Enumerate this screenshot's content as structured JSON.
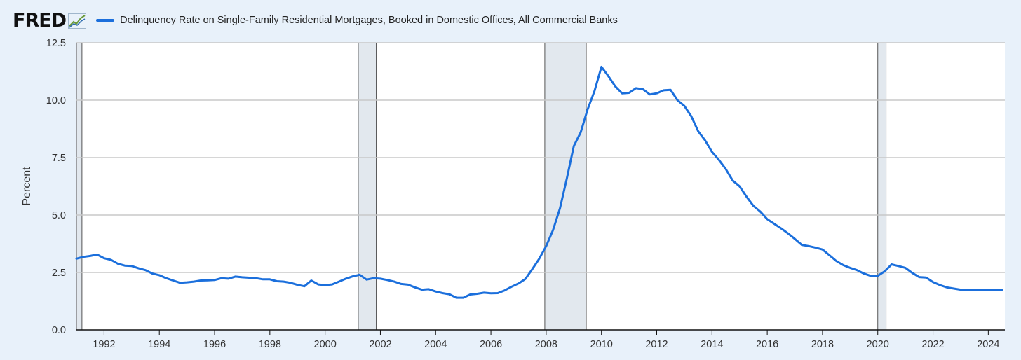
{
  "brand": {
    "logo_text": "FRED",
    "logo_icon": "line-chart-icon"
  },
  "colors": {
    "series": "#1b6fdc",
    "recession": "#e2e8ee",
    "grid": "#c8c8c8",
    "background": "#e8f1fa"
  },
  "chart_data": {
    "type": "line",
    "title": "",
    "xlabel": "",
    "ylabel": "Percent",
    "xlim": [
      1991.0,
      2024.6
    ],
    "ylim": [
      0,
      12.5
    ],
    "yticks": [
      0.0,
      2.5,
      5.0,
      7.5,
      10.0,
      12.5
    ],
    "ytick_labels": [
      "0.0",
      "2.5",
      "5.0",
      "7.5",
      "10.0",
      "12.5"
    ],
    "xticks": [
      1992,
      1994,
      1996,
      1998,
      2000,
      2002,
      2004,
      2006,
      2008,
      2010,
      2012,
      2014,
      2016,
      2018,
      2020,
      2022,
      2024
    ],
    "xtick_labels": [
      "1992",
      "1994",
      "1996",
      "1998",
      "2000",
      "2002",
      "2004",
      "2006",
      "2008",
      "2010",
      "2012",
      "2014",
      "2016",
      "2018",
      "2020",
      "2022",
      "2024"
    ],
    "grid": "horizontal",
    "legend_position": "top-left",
    "recessions": [
      [
        1991.0,
        1991.2
      ],
      [
        2001.2,
        2001.85
      ],
      [
        2007.95,
        2009.45
      ],
      [
        2020.0,
        2020.3
      ]
    ],
    "series": [
      {
        "name": "Delinquency Rate on Single-Family Residential Mortgages, Booked in Domestic Offices, All Commercial Banks",
        "x": [
          1991.0,
          1991.25,
          1991.5,
          1991.75,
          1992.0,
          1992.25,
          1992.5,
          1992.75,
          1993.0,
          1993.25,
          1993.5,
          1993.75,
          1994.0,
          1994.25,
          1994.5,
          1994.75,
          1995.0,
          1995.25,
          1995.5,
          1995.75,
          1996.0,
          1996.25,
          1996.5,
          1996.75,
          1997.0,
          1997.25,
          1997.5,
          1997.75,
          1998.0,
          1998.25,
          1998.5,
          1998.75,
          1999.0,
          1999.25,
          1999.5,
          1999.75,
          2000.0,
          2000.25,
          2000.5,
          2000.75,
          2001.0,
          2001.25,
          2001.5,
          2001.75,
          2002.0,
          2002.25,
          2002.5,
          2002.75,
          2003.0,
          2003.25,
          2003.5,
          2003.75,
          2004.0,
          2004.25,
          2004.5,
          2004.75,
          2005.0,
          2005.25,
          2005.5,
          2005.75,
          2006.0,
          2006.25,
          2006.5,
          2006.75,
          2007.0,
          2007.25,
          2007.5,
          2007.75,
          2008.0,
          2008.25,
          2008.5,
          2008.75,
          2009.0,
          2009.25,
          2009.5,
          2009.75,
          2010.0,
          2010.25,
          2010.5,
          2010.75,
          2011.0,
          2011.25,
          2011.5,
          2011.75,
          2012.0,
          2012.25,
          2012.5,
          2012.75,
          2013.0,
          2013.25,
          2013.5,
          2013.75,
          2014.0,
          2014.25,
          2014.5,
          2014.75,
          2015.0,
          2015.25,
          2015.5,
          2015.75,
          2016.0,
          2016.25,
          2016.5,
          2016.75,
          2017.0,
          2017.25,
          2017.5,
          2017.75,
          2018.0,
          2018.25,
          2018.5,
          2018.75,
          2019.0,
          2019.25,
          2019.5,
          2019.75,
          2020.0,
          2020.25,
          2020.5,
          2020.75,
          2021.0,
          2021.25,
          2021.5,
          2021.75,
          2022.0,
          2022.25,
          2022.5,
          2022.75,
          2023.0,
          2023.25,
          2023.5,
          2023.75,
          2024.0,
          2024.25,
          2024.5
        ],
        "values": [
          3.1,
          3.18,
          3.22,
          3.28,
          3.12,
          3.05,
          2.88,
          2.8,
          2.78,
          2.68,
          2.6,
          2.45,
          2.38,
          2.25,
          2.15,
          2.05,
          2.07,
          2.1,
          2.15,
          2.16,
          2.17,
          2.25,
          2.23,
          2.32,
          2.29,
          2.27,
          2.25,
          2.2,
          2.2,
          2.12,
          2.1,
          2.05,
          1.96,
          1.9,
          2.15,
          1.98,
          1.95,
          1.98,
          2.1,
          2.23,
          2.33,
          2.4,
          2.19,
          2.25,
          2.23,
          2.17,
          2.1,
          2.0,
          1.97,
          1.85,
          1.75,
          1.77,
          1.67,
          1.6,
          1.55,
          1.4,
          1.4,
          1.54,
          1.57,
          1.62,
          1.59,
          1.6,
          1.72,
          1.88,
          2.02,
          2.22,
          2.65,
          3.1,
          3.65,
          4.35,
          5.3,
          6.6,
          8.0,
          8.6,
          9.6,
          10.4,
          11.45,
          11.05,
          10.6,
          10.3,
          10.32,
          10.52,
          10.48,
          10.25,
          10.3,
          10.43,
          10.45,
          10.0,
          9.75,
          9.3,
          8.65,
          8.25,
          7.75,
          7.4,
          7.0,
          6.5,
          6.25,
          5.8,
          5.4,
          5.15,
          4.82,
          4.62,
          4.42,
          4.2,
          3.96,
          3.7,
          3.65,
          3.58,
          3.5,
          3.25,
          3.0,
          2.82,
          2.7,
          2.6,
          2.45,
          2.35,
          2.35,
          2.55,
          2.85,
          2.78,
          2.7,
          2.48,
          2.3,
          2.28,
          2.08,
          1.95,
          1.85,
          1.8,
          1.75,
          1.74,
          1.73,
          1.73,
          1.74,
          1.75,
          1.75
        ]
      }
    ]
  }
}
